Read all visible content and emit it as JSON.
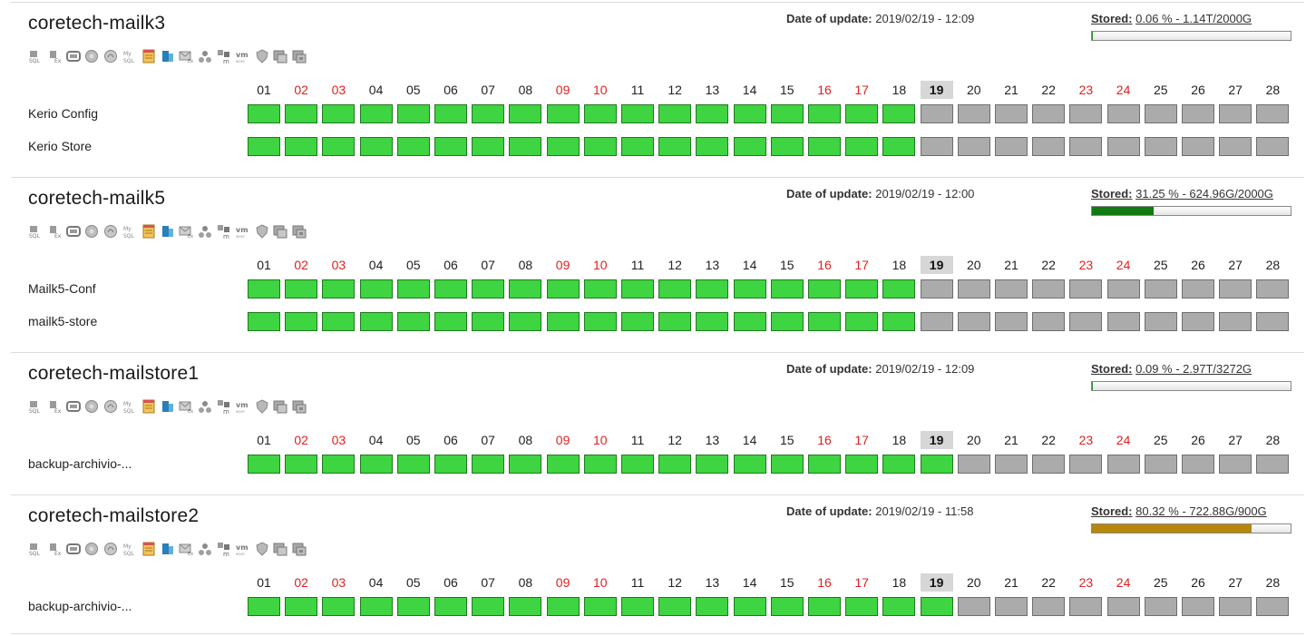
{
  "labels": {
    "date_of_update": "Date of update:",
    "stored": "Stored:"
  },
  "days": [
    {
      "label": "01",
      "weekend": false
    },
    {
      "label": "02",
      "weekend": true
    },
    {
      "label": "03",
      "weekend": true
    },
    {
      "label": "04",
      "weekend": false
    },
    {
      "label": "05",
      "weekend": false
    },
    {
      "label": "06",
      "weekend": false
    },
    {
      "label": "07",
      "weekend": false
    },
    {
      "label": "08",
      "weekend": false
    },
    {
      "label": "09",
      "weekend": true
    },
    {
      "label": "10",
      "weekend": true
    },
    {
      "label": "11",
      "weekend": false
    },
    {
      "label": "12",
      "weekend": false
    },
    {
      "label": "13",
      "weekend": false
    },
    {
      "label": "14",
      "weekend": false
    },
    {
      "label": "15",
      "weekend": false
    },
    {
      "label": "16",
      "weekend": true
    },
    {
      "label": "17",
      "weekend": true
    },
    {
      "label": "18",
      "weekend": false
    },
    {
      "label": "19",
      "weekend": false,
      "today": true
    },
    {
      "label": "20",
      "weekend": false
    },
    {
      "label": "21",
      "weekend": false
    },
    {
      "label": "22",
      "weekend": false
    },
    {
      "label": "23",
      "weekend": true
    },
    {
      "label": "24",
      "weekend": true
    },
    {
      "label": "25",
      "weekend": false
    },
    {
      "label": "26",
      "weekend": false
    },
    {
      "label": "27",
      "weekend": false
    },
    {
      "label": "28",
      "weekend": false
    }
  ],
  "colors": {
    "success": "#3fd441",
    "no_data": "#ababab",
    "weekend_text": "#e02020",
    "today_bg": "#d7d7d7"
  },
  "plugin_icons": [
    "sql-icon",
    "exchange-icon",
    "disk-icon",
    "vss-icon",
    "mysql-alt-icon",
    "mysql-icon",
    "calendar-icon",
    "database-icon",
    "mail-icon",
    "network-icon",
    "hyperv-icon",
    "vmware-icon",
    "shield-icon",
    "windows-icon",
    "windows-alt-icon"
  ],
  "servers": [
    {
      "name": "coretech-mailk3",
      "date_of_update": "2019/02/19 - 12:09",
      "stored_text": "0.06 % - 1.14T/2000G",
      "stored_percent": 0.06,
      "bar_color": "#2e8b2e",
      "jobs": [
        {
          "label": "Kerio Config",
          "success_days": 18
        },
        {
          "label": "Kerio Store",
          "success_days": 18
        }
      ]
    },
    {
      "name": "coretech-mailk5",
      "date_of_update": "2019/02/19 - 12:00",
      "stored_text": "31.25 % - 624.96G/2000G",
      "stored_percent": 31.25,
      "bar_color": "#0f7a0f",
      "jobs": [
        {
          "label": "Mailk5-Conf",
          "success_days": 18
        },
        {
          "label": "mailk5-store",
          "success_days": 18
        }
      ]
    },
    {
      "name": "coretech-mailstore1",
      "date_of_update": "2019/02/19 - 12:09",
      "stored_text": "0.09 % - 2.97T/3272G",
      "stored_percent": 0.09,
      "bar_color": "#2e8b2e",
      "jobs": [
        {
          "label": "backup-archivio-...",
          "success_days": 19
        }
      ]
    },
    {
      "name": "coretech-mailstore2",
      "date_of_update": "2019/02/19 - 11:58",
      "stored_text": "80.32 % - 722.88G/900G",
      "stored_percent": 80.32,
      "bar_color": "#b8860b",
      "jobs": [
        {
          "label": "backup-archivio-...",
          "success_days": 19
        }
      ]
    }
  ]
}
